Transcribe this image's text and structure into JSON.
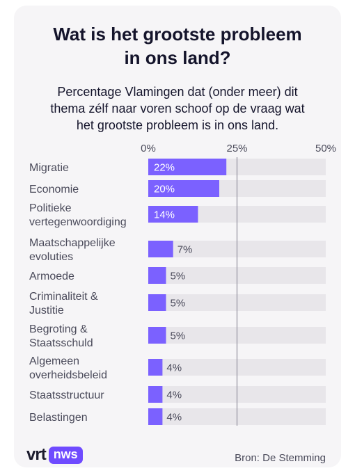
{
  "title_line1": "Wat is het grootste probleem",
  "title_line2": "in ons land?",
  "subtitle_line1": "Percentage Vlamingen dat (onder meer) dit",
  "subtitle_line2": "thema zélf naar voren schoof op de vraag wat",
  "subtitle_line3": "het grootste probleem is in ons land.",
  "source": "Bron: De Stemming",
  "logo": {
    "vrt": "vrt",
    "nws": "nws"
  },
  "colors": {
    "bar": "#7b61ff",
    "track": "#e8e6ea",
    "text": "#14142b",
    "label": "#4a4a5a",
    "gridline": "#9a98a4"
  },
  "chart_data": {
    "type": "bar",
    "orientation": "horizontal",
    "categories": [
      [
        "Migratie"
      ],
      [
        "Economie"
      ],
      [
        "Politieke",
        "vertegenwoordiging"
      ],
      [
        "Maatschappelijke",
        "evoluties"
      ],
      [
        "Armoede"
      ],
      [
        "Criminaliteit &",
        "Justitie"
      ],
      [
        "Begroting &",
        "Staatsschuld"
      ],
      [
        "Algemeen",
        "overheidsbeleid"
      ],
      [
        "Staatsstructuur"
      ],
      [
        "Belastingen"
      ]
    ],
    "values": [
      22,
      20,
      14,
      7,
      5,
      5,
      5,
      4,
      4,
      4
    ],
    "value_labels": [
      "22%",
      "20%",
      "14%",
      "7%",
      "5%",
      "5%",
      "5%",
      "4%",
      "4%",
      "4%"
    ],
    "xlim": [
      0,
      50
    ],
    "ticks": [
      0,
      25,
      50
    ],
    "tick_labels": [
      "0%",
      "25%",
      "50%"
    ],
    "gridlines": [
      25
    ]
  }
}
